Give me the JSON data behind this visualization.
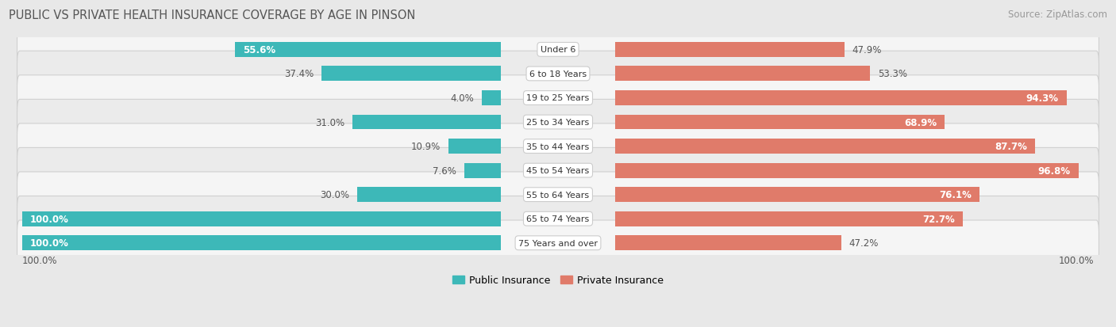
{
  "title": "PUBLIC VS PRIVATE HEALTH INSURANCE COVERAGE BY AGE IN PINSON",
  "source": "Source: ZipAtlas.com",
  "categories": [
    "Under 6",
    "6 to 18 Years",
    "19 to 25 Years",
    "25 to 34 Years",
    "35 to 44 Years",
    "45 to 54 Years",
    "55 to 64 Years",
    "65 to 74 Years",
    "75 Years and over"
  ],
  "public_values": [
    55.6,
    37.4,
    4.0,
    31.0,
    10.9,
    7.6,
    30.0,
    100.0,
    100.0
  ],
  "private_values": [
    47.9,
    53.3,
    94.3,
    68.9,
    87.7,
    96.8,
    76.1,
    72.7,
    47.2
  ],
  "public_color": "#3db8b8",
  "private_color": "#e07b6a",
  "public_color_light": "#5ecece",
  "private_color_light": "#eca090",
  "bg_color": "#e8e8e8",
  "row_bg_color": "#f5f5f5",
  "row_bg_color_alt": "#ebebeb",
  "bar_height": 0.62,
  "title_fontsize": 10.5,
  "label_fontsize": 8.5,
  "category_fontsize": 8.0,
  "source_fontsize": 8.5,
  "xlim_left": -105,
  "xlim_right": 105,
  "pub_label_inside_threshold": 50,
  "priv_label_inside_threshold": 65
}
